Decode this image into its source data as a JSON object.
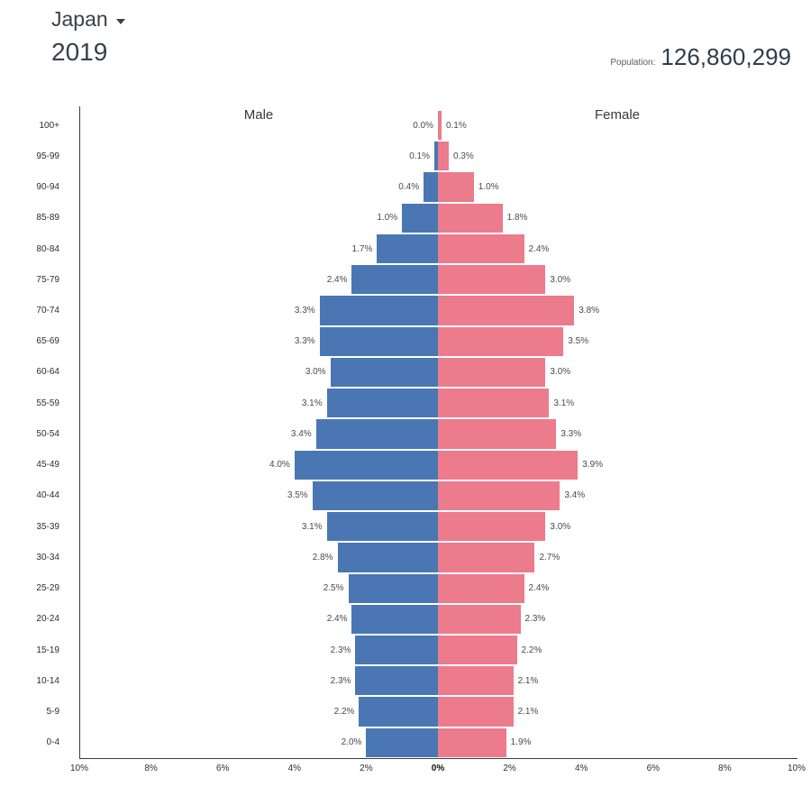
{
  "header": {
    "country": "Japan",
    "year": "2019",
    "population_label": "Population:",
    "population_value": "126,860,299"
  },
  "chart_data": {
    "type": "bar",
    "subtype": "population-pyramid",
    "title": "Japan 2019 population pyramid",
    "male_label": "Male",
    "female_label": "Female",
    "male_color": "#4a77b4",
    "female_color": "#ec7b8b",
    "xlim_percent": 10,
    "axis_ticks": [
      "10%",
      "8%",
      "6%",
      "4%",
      "2%",
      "0%",
      "2%",
      "4%",
      "6%",
      "8%",
      "10%"
    ],
    "age_groups": [
      "100+",
      "95-99",
      "90-94",
      "85-89",
      "80-84",
      "75-79",
      "70-74",
      "65-69",
      "60-64",
      "55-59",
      "50-54",
      "45-49",
      "40-44",
      "35-39",
      "30-34",
      "25-29",
      "20-24",
      "15-19",
      "10-14",
      "5-9",
      "0-4"
    ],
    "series": [
      {
        "name": "Male",
        "values": [
          0.0,
          0.1,
          0.4,
          1.0,
          1.7,
          2.4,
          3.3,
          3.3,
          3.0,
          3.1,
          3.4,
          4.0,
          3.5,
          3.1,
          2.8,
          2.5,
          2.4,
          2.3,
          2.3,
          2.2,
          2.0
        ],
        "labels": [
          "0.0%",
          "0.1%",
          "0.4%",
          "1.0%",
          "1.7%",
          "2.4%",
          "3.3%",
          "3.3%",
          "3.0%",
          "3.1%",
          "3.4%",
          "4.0%",
          "3.5%",
          "3.1%",
          "2.8%",
          "2.5%",
          "2.4%",
          "2.3%",
          "2.3%",
          "2.2%",
          "2.0%"
        ]
      },
      {
        "name": "Female",
        "values": [
          0.1,
          0.3,
          1.0,
          1.8,
          2.4,
          3.0,
          3.8,
          3.5,
          3.0,
          3.1,
          3.3,
          3.9,
          3.4,
          3.0,
          2.7,
          2.4,
          2.3,
          2.2,
          2.1,
          2.1,
          1.9
        ],
        "labels": [
          "0.1%",
          "0.3%",
          "1.0%",
          "1.8%",
          "2.4%",
          "3.0%",
          "3.8%",
          "3.5%",
          "3.0%",
          "3.1%",
          "3.3%",
          "3.9%",
          "3.4%",
          "3.0%",
          "2.7%",
          "2.4%",
          "2.3%",
          "2.2%",
          "2.1%",
          "2.1%",
          "1.9%"
        ]
      }
    ]
  }
}
